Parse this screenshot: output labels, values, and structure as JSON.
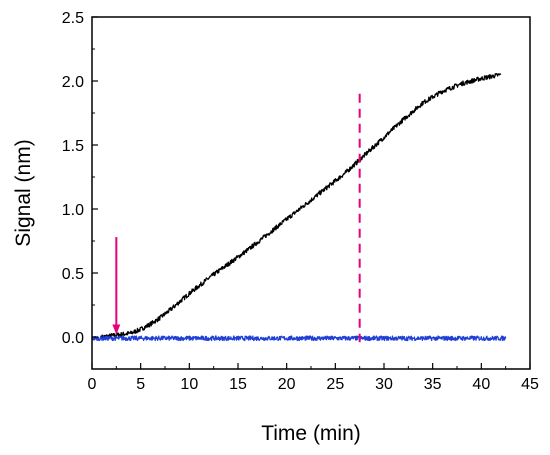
{
  "chart_data": {
    "type": "line",
    "xlabel": "Time (min)",
    "ylabel": "Signal (nm)",
    "xlim": [
      0,
      45
    ],
    "ylim": [
      -0.25,
      2.5
    ],
    "x_ticks": [
      0,
      5,
      10,
      15,
      20,
      25,
      30,
      35,
      40,
      45
    ],
    "x_tick_labels": [
      "0",
      "5",
      "10",
      "15",
      "20",
      "25",
      "30",
      "35",
      "40",
      "45"
    ],
    "y_ticks": [
      0.0,
      0.5,
      1.0,
      1.5,
      2.0,
      2.5
    ],
    "y_tick_labels": [
      "0.0",
      "0.5",
      "1.0",
      "1.5",
      "2.0",
      "2.5"
    ],
    "grid": false,
    "legend": "none",
    "series": [
      {
        "color": "#000000",
        "x": [
          1,
          2,
          3,
          4,
          5,
          6,
          7,
          8,
          10,
          12,
          14,
          16,
          18,
          20,
          22,
          24,
          26,
          28,
          30,
          32,
          34,
          36,
          38,
          40,
          42
        ],
        "y": [
          0.0,
          0.01,
          0.02,
          0.03,
          0.06,
          0.1,
          0.15,
          0.21,
          0.34,
          0.46,
          0.57,
          0.68,
          0.8,
          0.92,
          1.04,
          1.16,
          1.28,
          1.42,
          1.56,
          1.7,
          1.83,
          1.92,
          1.98,
          2.02,
          2.05
        ]
      },
      {
        "color": "#1f3fd6",
        "x": [
          0,
          42.5
        ],
        "y": [
          -0.01,
          -0.01
        ]
      }
    ],
    "annotations": [
      {
        "type": "arrow",
        "color": "#e6007a",
        "x": 2.5,
        "y_from": 0.78,
        "y_to": 0.02
      },
      {
        "type": "vline",
        "style": "dashed",
        "color": "#e6007a",
        "x": 27.5,
        "y_from": -0.04,
        "y_to": 1.9
      }
    ]
  }
}
